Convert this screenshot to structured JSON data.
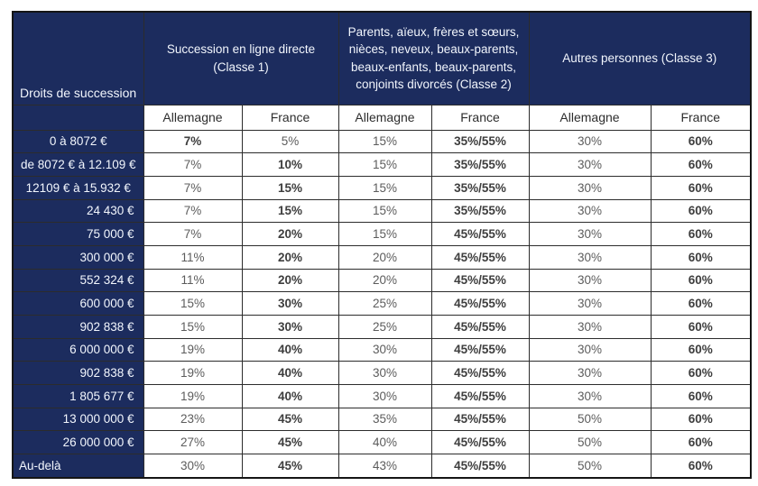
{
  "table": {
    "corner_header": "Droits de succession",
    "groups": [
      {
        "label": "Succession en ligne directe (Classe 1)"
      },
      {
        "label": "Parents, aïeux, frères et sœurs, nièces, neveux, beaux-parents, beaux-enfants, beaux-parents, conjoints divorcés (Classe 2)"
      },
      {
        "label": "Autres personnes (Classe 3)"
      }
    ],
    "sub_headers": [
      "Allemagne",
      "France",
      "Allemagne",
      "France",
      "Allemagne",
      "France"
    ],
    "rows": [
      {
        "label": "0 à 8072 €",
        "align": "center",
        "values": [
          "7%",
          "5%",
          "15%",
          "35%/55%",
          "30%",
          "60%"
        ],
        "bold": [
          true,
          false,
          false,
          true,
          false,
          true
        ]
      },
      {
        "label": "de 8072 € à 12.109 €",
        "align": "center",
        "values": [
          "7%",
          "10%",
          "15%",
          "35%/55%",
          "30%",
          "60%"
        ],
        "bold": [
          false,
          true,
          false,
          true,
          false,
          true
        ]
      },
      {
        "label": "12109 € à 15.932 €",
        "align": "center",
        "values": [
          "7%",
          "15%",
          "15%",
          "35%/55%",
          "30%",
          "60%"
        ],
        "bold": [
          false,
          true,
          false,
          true,
          false,
          true
        ]
      },
      {
        "label": "24 430 €",
        "align": "right",
        "values": [
          "7%",
          "15%",
          "15%",
          "35%/55%",
          "30%",
          "60%"
        ],
        "bold": [
          false,
          true,
          false,
          true,
          false,
          true
        ]
      },
      {
        "label": "75 000 €",
        "align": "right",
        "values": [
          "7%",
          "20%",
          "15%",
          "45%/55%",
          "30%",
          "60%"
        ],
        "bold": [
          false,
          true,
          false,
          true,
          false,
          true
        ]
      },
      {
        "label": "300 000 €",
        "align": "right",
        "values": [
          "11%",
          "20%",
          "20%",
          "45%/55%",
          "30%",
          "60%"
        ],
        "bold": [
          false,
          true,
          false,
          true,
          false,
          true
        ]
      },
      {
        "label": "552 324 €",
        "align": "right",
        "values": [
          "11%",
          "20%",
          "20%",
          "45%/55%",
          "30%",
          "60%"
        ],
        "bold": [
          false,
          true,
          false,
          true,
          false,
          true
        ]
      },
      {
        "label": "600 000 €",
        "align": "right",
        "values": [
          "15%",
          "30%",
          "25%",
          "45%/55%",
          "30%",
          "60%"
        ],
        "bold": [
          false,
          true,
          false,
          true,
          false,
          true
        ]
      },
      {
        "label": "902 838 €",
        "align": "right",
        "values": [
          "15%",
          "30%",
          "25%",
          "45%/55%",
          "30%",
          "60%"
        ],
        "bold": [
          false,
          true,
          false,
          true,
          false,
          true
        ]
      },
      {
        "label": "6 000 000 €",
        "align": "right",
        "values": [
          "19%",
          "40%",
          "30%",
          "45%/55%",
          "30%",
          "60%"
        ],
        "bold": [
          false,
          true,
          false,
          true,
          false,
          true
        ]
      },
      {
        "label": "902 838 €",
        "align": "right",
        "values": [
          "19%",
          "40%",
          "30%",
          "45%/55%",
          "30%",
          "60%"
        ],
        "bold": [
          false,
          true,
          false,
          true,
          false,
          true
        ]
      },
      {
        "label": "1 805 677 €",
        "align": "right",
        "values": [
          "19%",
          "40%",
          "30%",
          "45%/55%",
          "30%",
          "60%"
        ],
        "bold": [
          false,
          true,
          false,
          true,
          false,
          true
        ]
      },
      {
        "label": "13 000 000 €",
        "align": "right",
        "values": [
          "23%",
          "45%",
          "35%",
          "45%/55%",
          "50%",
          "60%"
        ],
        "bold": [
          false,
          true,
          false,
          true,
          false,
          true
        ]
      },
      {
        "label": "26 000 000 €",
        "align": "right",
        "values": [
          "27%",
          "45%",
          "40%",
          "45%/55%",
          "50%",
          "60%"
        ],
        "bold": [
          false,
          true,
          false,
          true,
          false,
          true
        ]
      },
      {
        "label": "Au-delà",
        "align": "left",
        "values": [
          "30%",
          "45%",
          "43%",
          "45%/55%",
          "50%",
          "60%"
        ],
        "bold": [
          false,
          true,
          false,
          true,
          false,
          true
        ]
      }
    ],
    "colors": {
      "header_bg": "#1c2c5e",
      "header_text": "#f2f6fd",
      "value_text": "#5c5c5c",
      "value_text_bold": "#3e3e3e",
      "grid_border": "#2c2c2c"
    }
  }
}
